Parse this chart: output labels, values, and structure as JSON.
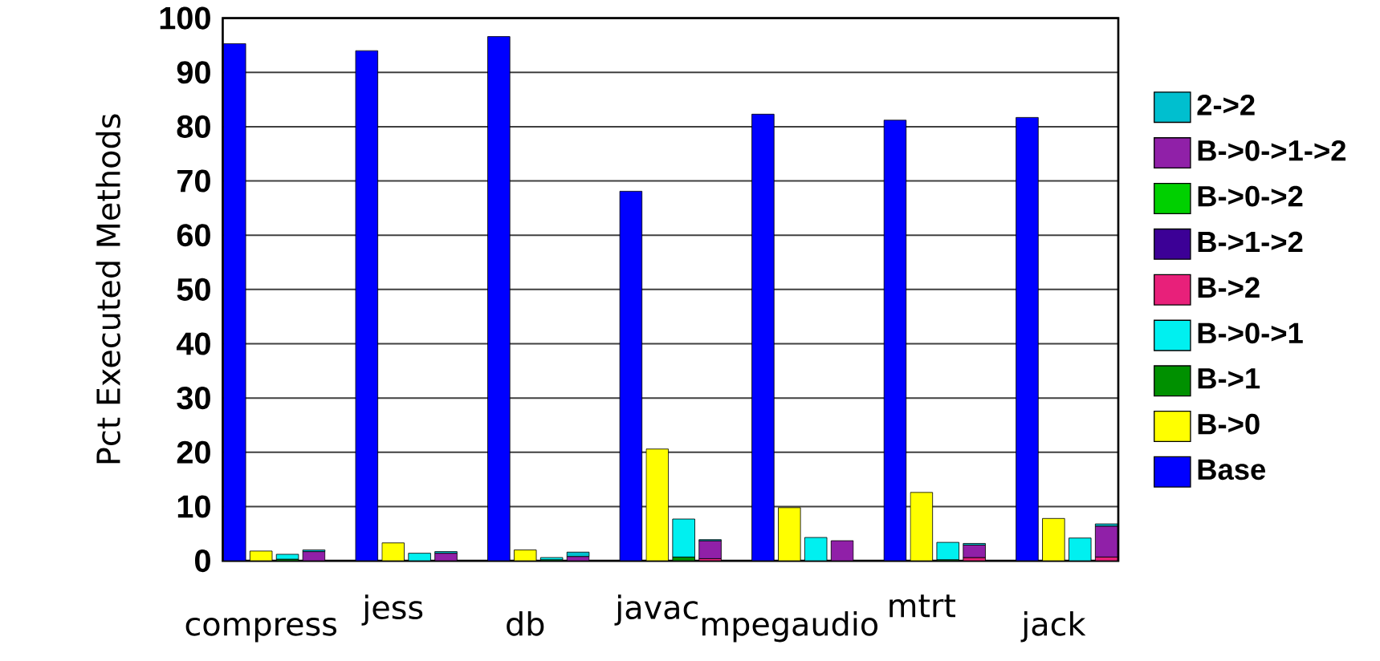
{
  "chart_data": {
    "type": "bar",
    "stacked": true,
    "ylabel": "Pct Executed Methods",
    "ylim": [
      0,
      100
    ],
    "yticks": [
      0,
      10,
      20,
      30,
      40,
      50,
      60,
      70,
      80,
      90,
      100
    ],
    "grid": "y",
    "legend": "right",
    "categories": [
      null,
      "compress",
      null,
      null,
      null,
      "jess",
      null,
      null,
      null,
      "db",
      null,
      null,
      null,
      "javac",
      null,
      null,
      null,
      "mpegaudio",
      null,
      null,
      null,
      "mtrt",
      null,
      null,
      null,
      "jack",
      null,
      null
    ],
    "series": [
      {
        "name": "Base",
        "color": "#0000ff",
        "values": [
          95.3,
          null,
          null,
          null,
          94.0,
          null,
          null,
          null,
          96.6,
          null,
          null,
          null,
          68.1,
          null,
          null,
          null,
          82.3,
          null,
          null,
          null,
          81.2,
          null,
          null,
          null,
          81.7,
          null,
          null,
          null
        ]
      },
      {
        "name": "B->0",
        "color": "#ffff00",
        "values": [
          null,
          1.8,
          null,
          null,
          null,
          3.3,
          null,
          null,
          null,
          2.0,
          null,
          null,
          null,
          20.6,
          null,
          null,
          null,
          9.8,
          null,
          null,
          null,
          12.6,
          null,
          null,
          null,
          7.8,
          null,
          null
        ]
      },
      {
        "name": "B->1",
        "color": "#009000",
        "values": [
          null,
          null,
          0.3,
          null,
          null,
          null,
          null,
          null,
          null,
          null,
          0.2,
          null,
          null,
          null,
          0.7,
          null,
          null,
          null,
          null,
          null,
          null,
          null,
          0.2,
          null,
          null,
          null,
          null,
          null
        ]
      },
      {
        "name": "B->0->1",
        "color": "#00f0f0",
        "values": [
          null,
          null,
          0.9,
          null,
          null,
          null,
          1.4,
          null,
          null,
          null,
          0.4,
          null,
          null,
          null,
          7.0,
          null,
          null,
          null,
          4.3,
          null,
          null,
          null,
          3.2,
          null,
          null,
          null,
          4.2,
          null
        ]
      },
      {
        "name": "B->2",
        "color": "#e8207a",
        "values": [
          null,
          null,
          null,
          null,
          null,
          null,
          null,
          null,
          null,
          null,
          null,
          null,
          null,
          null,
          null,
          0.4,
          null,
          null,
          null,
          null,
          null,
          null,
          null,
          0.6,
          null,
          null,
          null,
          0.7
        ]
      },
      {
        "name": "B->1->2",
        "color": "#3c0096",
        "values": [
          null,
          null,
          null,
          null,
          null,
          null,
          null,
          null,
          null,
          null,
          null,
          null,
          null,
          null,
          null,
          null,
          null,
          null,
          null,
          null,
          null,
          null,
          null,
          null,
          null,
          null,
          null,
          null
        ]
      },
      {
        "name": "B->0->2",
        "color": "#00d000",
        "values": [
          null,
          null,
          null,
          null,
          null,
          null,
          null,
          null,
          null,
          null,
          null,
          null,
          null,
          null,
          null,
          null,
          null,
          null,
          null,
          null,
          null,
          null,
          null,
          null,
          null,
          null,
          null,
          null
        ]
      },
      {
        "name": "B->0->1->2",
        "color": "#9020a8",
        "values": [
          null,
          null,
          null,
          1.7,
          null,
          null,
          null,
          1.4,
          null,
          null,
          null,
          0.8,
          null,
          null,
          null,
          3.3,
          null,
          null,
          null,
          3.7,
          null,
          null,
          null,
          2.3,
          null,
          null,
          null,
          5.7
        ]
      },
      {
        "name": "2->2",
        "color": "#00bfcf",
        "values": [
          null,
          null,
          null,
          0.3,
          null,
          null,
          null,
          0.3,
          null,
          null,
          null,
          0.8,
          null,
          null,
          null,
          0.2,
          null,
          null,
          null,
          null,
          null,
          null,
          null,
          0.3,
          null,
          null,
          null,
          0.4
        ]
      }
    ]
  }
}
